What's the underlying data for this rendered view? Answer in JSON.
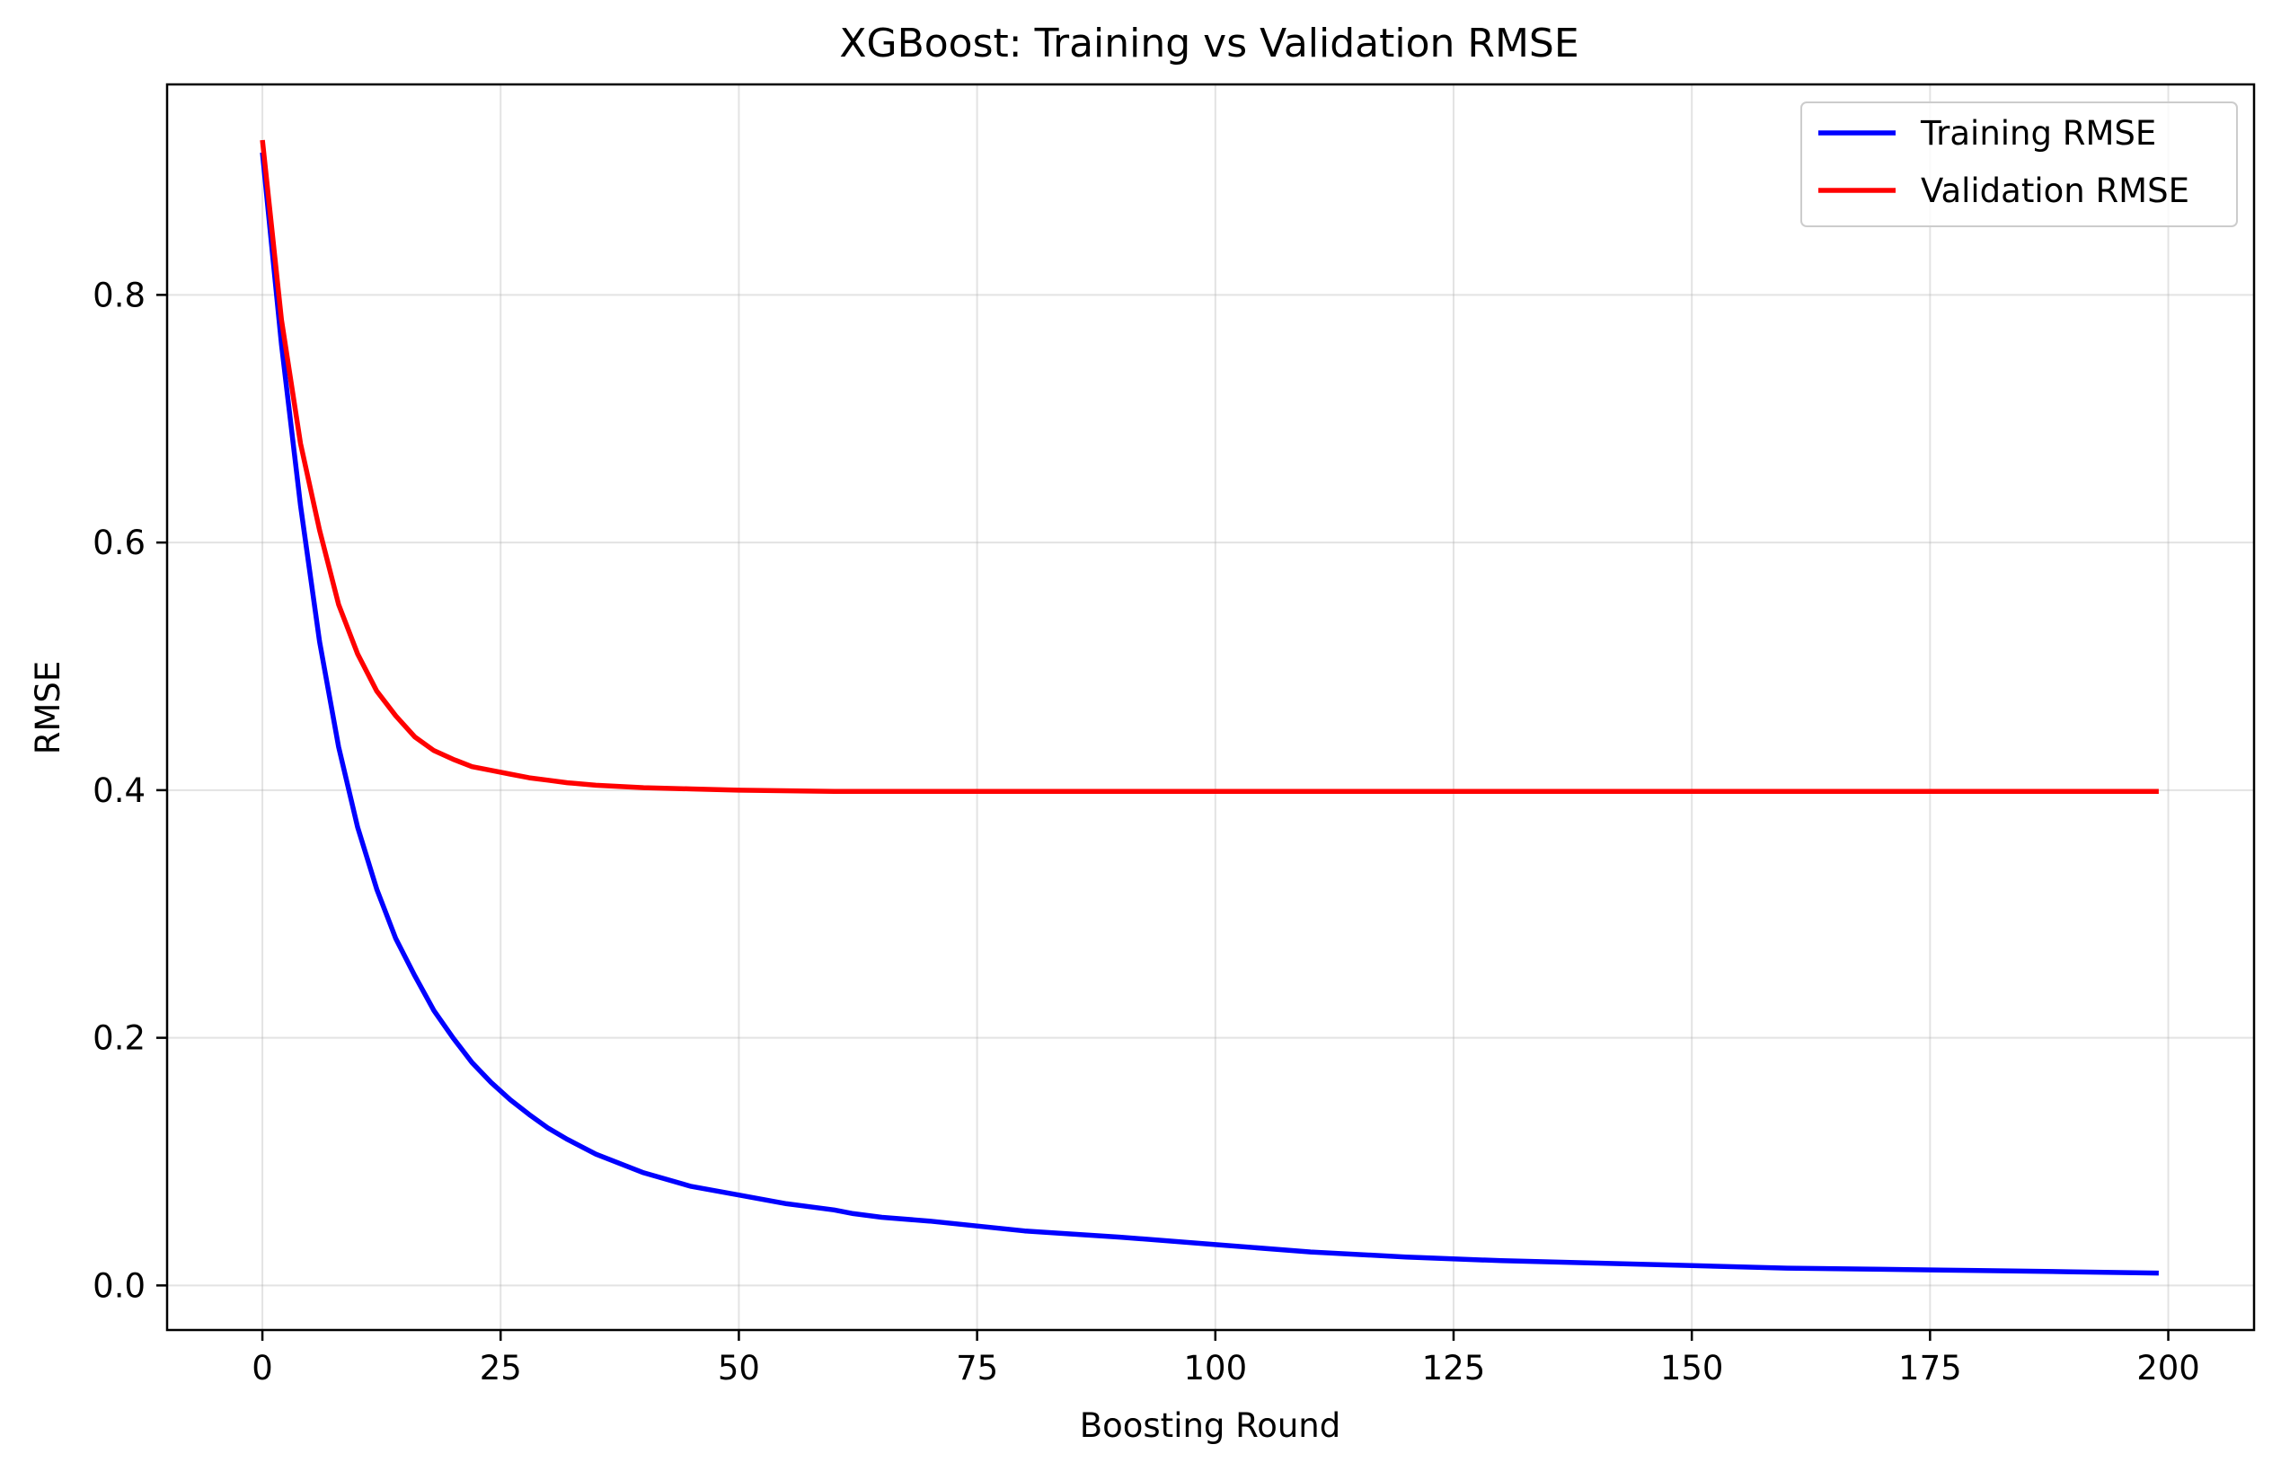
{
  "chart_data": {
    "type": "line",
    "title": "XGBoost: Training vs Validation RMSE",
    "xlabel": "Boosting Round",
    "ylabel": "RMSE",
    "xlim": [
      -10,
      209
    ],
    "ylim": [
      -0.036,
      0.97
    ],
    "xticks": [
      0,
      25,
      50,
      75,
      100,
      125,
      150,
      175,
      200
    ],
    "yticks": [
      0.0,
      0.2,
      0.4,
      0.6,
      0.8
    ],
    "xtick_labels": [
      "0",
      "25",
      "50",
      "75",
      "100",
      "125",
      "150",
      "175",
      "200"
    ],
    "ytick_labels": [
      "0.0",
      "0.2",
      "0.4",
      "0.6",
      "0.8"
    ],
    "grid": true,
    "legend_position": "top-right",
    "series": [
      {
        "name": "Training RMSE",
        "color": "#0000ff",
        "x": [
          0,
          2,
          4,
          6,
          8,
          10,
          12,
          14,
          16,
          18,
          20,
          22,
          24,
          26,
          28,
          30,
          32,
          35,
          40,
          45,
          50,
          55,
          60,
          62,
          65,
          70,
          75,
          80,
          90,
          100,
          110,
          120,
          130,
          140,
          150,
          160,
          170,
          180,
          190,
          199
        ],
        "y": [
          0.915,
          0.76,
          0.63,
          0.52,
          0.435,
          0.37,
          0.32,
          0.28,
          0.25,
          0.222,
          0.2,
          0.18,
          0.164,
          0.15,
          0.138,
          0.127,
          0.118,
          0.106,
          0.091,
          0.08,
          0.073,
          0.066,
          0.061,
          0.058,
          0.055,
          0.052,
          0.048,
          0.044,
          0.039,
          0.033,
          0.027,
          0.023,
          0.02,
          0.018,
          0.016,
          0.014,
          0.013,
          0.012,
          0.011,
          0.01
        ]
      },
      {
        "name": "Validation RMSE",
        "color": "#ff0000",
        "x": [
          0,
          2,
          4,
          6,
          8,
          10,
          12,
          14,
          16,
          18,
          20,
          22,
          24,
          26,
          28,
          30,
          32,
          35,
          40,
          45,
          50,
          60,
          70,
          80,
          100,
          120,
          150,
          175,
          199
        ],
        "y": [
          0.925,
          0.78,
          0.68,
          0.61,
          0.55,
          0.51,
          0.48,
          0.46,
          0.443,
          0.432,
          0.425,
          0.419,
          0.416,
          0.413,
          0.41,
          0.408,
          0.406,
          0.404,
          0.402,
          0.401,
          0.4,
          0.399,
          0.399,
          0.399,
          0.399,
          0.399,
          0.399,
          0.399,
          0.399
        ]
      }
    ]
  }
}
